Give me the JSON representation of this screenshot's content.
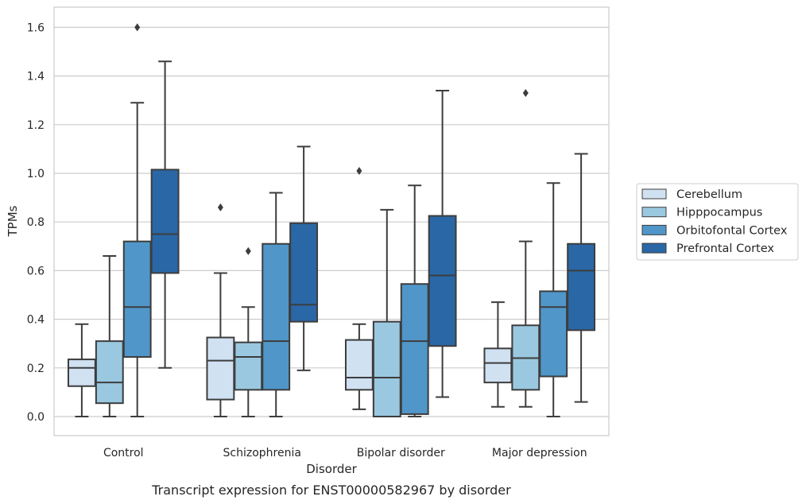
{
  "chart_data": {
    "type": "box",
    "caption": "Transcript expression for ENST00000582967 by disorder",
    "xlabel": "Disorder",
    "ylabel": "TPMs",
    "ylim": [
      -0.08,
      1.68
    ],
    "yticks": [
      "0.0",
      "0.2",
      "0.4",
      "0.6",
      "0.8",
      "1.0",
      "1.2",
      "1.4",
      "1.6"
    ],
    "grid": "horizontal",
    "legend_position": "right",
    "categories": [
      "Control",
      "Schizophrenia",
      "Bipolar disorder",
      "Major depression"
    ],
    "series": [
      {
        "name": "Cerebellum",
        "color": "#d0e1f2",
        "boxes": [
          {
            "whislo": 0.0,
            "q1": 0.125,
            "med": 0.2,
            "q3": 0.235,
            "whishi": 0.38,
            "fliers": []
          },
          {
            "whislo": 0.0,
            "q1": 0.07,
            "med": 0.23,
            "q3": 0.325,
            "whishi": 0.59,
            "fliers": [
              0.86
            ]
          },
          {
            "whislo": 0.03,
            "q1": 0.11,
            "med": 0.16,
            "q3": 0.315,
            "whishi": 0.38,
            "fliers": [
              1.01
            ]
          },
          {
            "whislo": 0.04,
            "q1": 0.14,
            "med": 0.22,
            "q3": 0.28,
            "whishi": 0.47,
            "fliers": []
          }
        ]
      },
      {
        "name": "Hipppocampus",
        "color": "#9ac8e0",
        "boxes": [
          {
            "whislo": 0.0,
            "q1": 0.055,
            "med": 0.14,
            "q3": 0.31,
            "whishi": 0.66,
            "fliers": []
          },
          {
            "whislo": 0.0,
            "q1": 0.11,
            "med": 0.245,
            "q3": 0.305,
            "whishi": 0.45,
            "fliers": [
              0.68
            ]
          },
          {
            "whislo": 0.0,
            "q1": 0.0,
            "med": 0.16,
            "q3": 0.39,
            "whishi": 0.85,
            "fliers": []
          },
          {
            "whislo": 0.04,
            "q1": 0.11,
            "med": 0.24,
            "q3": 0.375,
            "whishi": 0.72,
            "fliers": [
              1.33
            ]
          }
        ]
      },
      {
        "name": "Orbitofontal Cortex",
        "color": "#5096c9",
        "boxes": [
          {
            "whislo": 0.0,
            "q1": 0.245,
            "med": 0.45,
            "q3": 0.72,
            "whishi": 1.29,
            "fliers": [
              1.6
            ]
          },
          {
            "whislo": 0.0,
            "q1": 0.11,
            "med": 0.31,
            "q3": 0.71,
            "whishi": 0.92,
            "fliers": []
          },
          {
            "whislo": 0.0,
            "q1": 0.01,
            "med": 0.31,
            "q3": 0.545,
            "whishi": 0.95,
            "fliers": []
          },
          {
            "whislo": 0.0,
            "q1": 0.165,
            "med": 0.45,
            "q3": 0.515,
            "whishi": 0.96,
            "fliers": []
          }
        ]
      },
      {
        "name": "Prefrontal Cortex",
        "color": "#2a67a6",
        "boxes": [
          {
            "whislo": 0.2,
            "q1": 0.59,
            "med": 0.75,
            "q3": 1.015,
            "whishi": 1.46,
            "fliers": []
          },
          {
            "whislo": 0.19,
            "q1": 0.39,
            "med": 0.46,
            "q3": 0.795,
            "whishi": 1.11,
            "fliers": []
          },
          {
            "whislo": 0.08,
            "q1": 0.29,
            "med": 0.58,
            "q3": 0.825,
            "whishi": 1.34,
            "fliers": []
          },
          {
            "whislo": 0.06,
            "q1": 0.355,
            "med": 0.6,
            "q3": 0.71,
            "whishi": 1.08,
            "fliers": []
          }
        ]
      }
    ]
  }
}
